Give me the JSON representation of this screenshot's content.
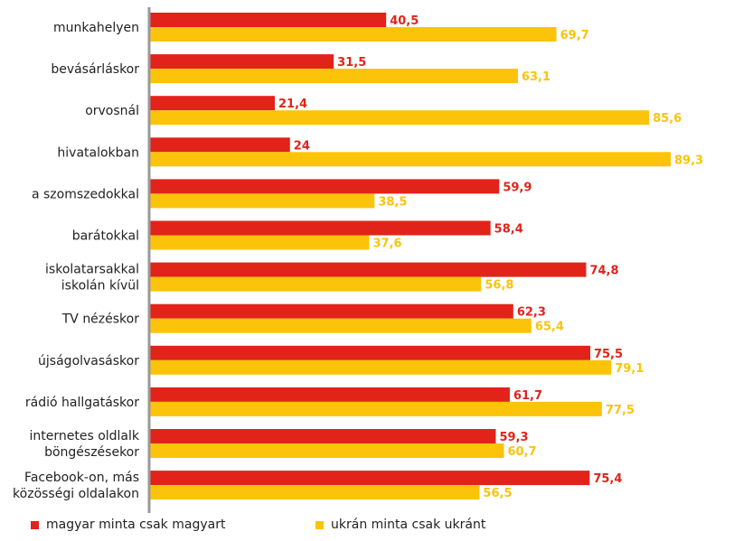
{
  "chart_data": {
    "type": "bar",
    "orientation": "horizontal",
    "categories": [
      [
        "munkahelyen"
      ],
      [
        "bevásárláskor"
      ],
      [
        "orvosnál"
      ],
      [
        "hivatalokban"
      ],
      [
        "a szomszedokkal"
      ],
      [
        "barátokkal"
      ],
      [
        "iskolatarsakkal",
        "iskolán kívül"
      ],
      [
        "TV nézéskor"
      ],
      [
        "újságolvasáskor"
      ],
      [
        "rádió hallgatáskor"
      ],
      [
        "internetes oldlalk",
        "böngészésekor"
      ],
      [
        "Facebook-on, más",
        "közösségi oldalakon"
      ]
    ],
    "series": [
      {
        "name": "magyar minta csak magyart",
        "color": "#e2231a",
        "values": [
          40.5,
          31.5,
          21.4,
          24,
          59.9,
          58.4,
          74.8,
          62.3,
          75.5,
          61.7,
          59.3,
          75.4
        ],
        "labels": [
          "40,5",
          "31,5",
          "21,4",
          "24",
          "59,9",
          "58,4",
          "74,8",
          "62,3",
          "75,5",
          "61,7",
          "59,3",
          "75,4"
        ]
      },
      {
        "name": "ukrán minta csak ukránt",
        "color": "#fcc30b",
        "values": [
          69.7,
          63.1,
          85.6,
          89.3,
          38.5,
          37.6,
          56.8,
          65.4,
          79.1,
          77.5,
          60.7,
          56.5
        ],
        "labels": [
          "69,7",
          "63,1",
          "85,6",
          "89,3",
          "38,5",
          "37,6",
          "56,8",
          "65,4",
          "79,1",
          "77,5",
          "60,7",
          "56,5"
        ]
      }
    ],
    "xlim": [
      0,
      100
    ],
    "grid": false,
    "legend_position": "bottom"
  },
  "legend": [
    {
      "label": "magyar minta csak magyart",
      "color": "#e2231a"
    },
    {
      "label": "ukrán minta csak ukránt",
      "color": "#fcc30b"
    }
  ]
}
